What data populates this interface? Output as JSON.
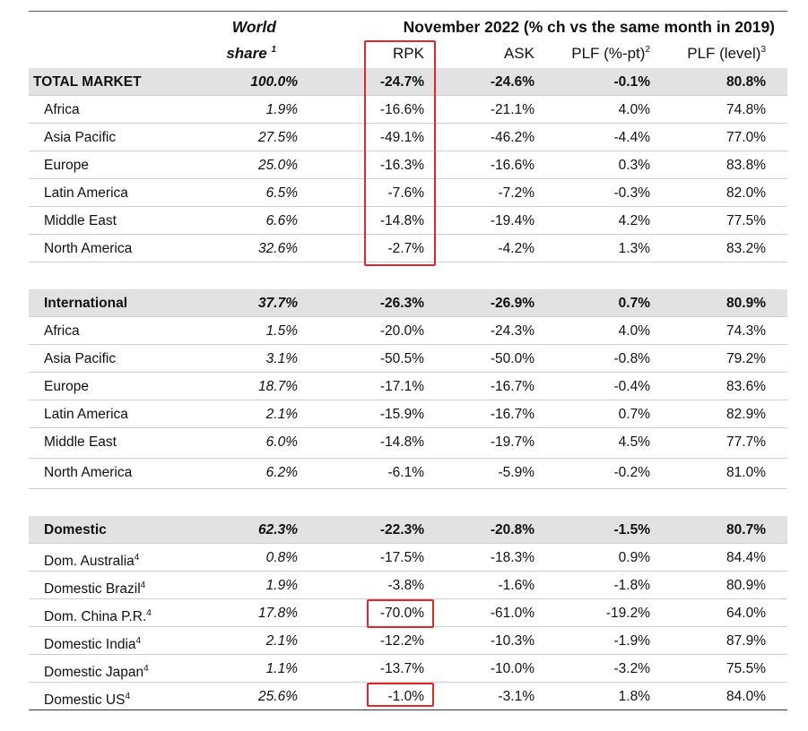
{
  "header": {
    "world_share_line1": "World",
    "world_share_line2": "share",
    "world_share_sup": "1",
    "period_title": "November 2022 (% ch vs the same month in 2019)",
    "columns": {
      "rpk": "RPK",
      "ask": "ASK",
      "plf_pt": "PLF (%-pt)",
      "plf_pt_sup": "2",
      "plf_level": "PLF (level)",
      "plf_level_sup": "3"
    }
  },
  "sections": [
    {
      "type": "total",
      "rows": [
        {
          "name": "TOTAL MARKET",
          "sup": "",
          "share": "100.0%",
          "rpk": "-24.7%",
          "ask": "-24.6%",
          "plf_pt": "-0.1%",
          "plf_level": "80.8%"
        },
        {
          "name": "Africa",
          "sup": "",
          "share": "1.9%",
          "rpk": "-16.6%",
          "ask": "-21.1%",
          "plf_pt": "4.0%",
          "plf_level": "74.8%"
        },
        {
          "name": "Asia Pacific",
          "sup": "",
          "share": "27.5%",
          "rpk": "-49.1%",
          "ask": "-46.2%",
          "plf_pt": "-4.4%",
          "plf_level": "77.0%"
        },
        {
          "name": "Europe",
          "sup": "",
          "share": "25.0%",
          "rpk": "-16.3%",
          "ask": "-16.6%",
          "plf_pt": "0.3%",
          "plf_level": "83.8%"
        },
        {
          "name": "Latin America",
          "sup": "",
          "share": "6.5%",
          "rpk": "-7.6%",
          "ask": "-7.2%",
          "plf_pt": "-0.3%",
          "plf_level": "82.0%"
        },
        {
          "name": "Middle East",
          "sup": "",
          "share": "6.6%",
          "rpk": "-14.8%",
          "ask": "-19.4%",
          "plf_pt": "4.2%",
          "plf_level": "77.5%"
        },
        {
          "name": "North America",
          "sup": "",
          "share": "32.6%",
          "rpk": "-2.7%",
          "ask": "-4.2%",
          "plf_pt": "1.3%",
          "plf_level": "83.2%"
        }
      ]
    },
    {
      "type": "international",
      "rows": [
        {
          "name": "International",
          "sup": "",
          "share": "37.7%",
          "rpk": "-26.3%",
          "ask": "-26.9%",
          "plf_pt": "0.7%",
          "plf_level": "80.9%"
        },
        {
          "name": "Africa",
          "sup": "",
          "share": "1.5%",
          "rpk": "-20.0%",
          "ask": "-24.3%",
          "plf_pt": "4.0%",
          "plf_level": "74.3%"
        },
        {
          "name": "Asia Pacific",
          "sup": "",
          "share": "3.1%",
          "rpk": "-50.5%",
          "ask": "-50.0%",
          "plf_pt": "-0.8%",
          "plf_level": "79.2%"
        },
        {
          "name": "Europe",
          "sup": "",
          "share": "18.7%",
          "rpk": "-17.1%",
          "ask": "-16.7%",
          "plf_pt": "-0.4%",
          "plf_level": "83.6%"
        },
        {
          "name": "Latin America",
          "sup": "",
          "share": "2.1%",
          "rpk": "-15.9%",
          "ask": "-16.7%",
          "plf_pt": "0.7%",
          "plf_level": "82.9%"
        },
        {
          "name": "Middle East",
          "sup": "",
          "share": "6.0%",
          "rpk": "-14.8%",
          "ask": "-19.7%",
          "plf_pt": "4.5%",
          "plf_level": "77.7%"
        },
        {
          "name": "North America",
          "sup": "",
          "share": "6.2%",
          "rpk": "-6.1%",
          "ask": "-5.9%",
          "plf_pt": "-0.2%",
          "plf_level": "81.0%"
        }
      ]
    },
    {
      "type": "domestic",
      "rows": [
        {
          "name": "Domestic",
          "sup": "",
          "share": "62.3%",
          "rpk": "-22.3%",
          "ask": "-20.8%",
          "plf_pt": "-1.5%",
          "plf_level": "80.7%"
        },
        {
          "name": "Dom. Australia",
          "sup": "4",
          "share": "0.8%",
          "rpk": "-17.5%",
          "ask": "-18.3%",
          "plf_pt": "0.9%",
          "plf_level": "84.4%"
        },
        {
          "name": "Domestic Brazil",
          "sup": "4",
          "share": "1.9%",
          "rpk": "-3.8%",
          "ask": "-1.6%",
          "plf_pt": "-1.8%",
          "plf_level": "80.9%"
        },
        {
          "name": "Dom. China P.R.",
          "sup": "4",
          "share": "17.8%",
          "rpk": "-70.0%",
          "ask": "-61.0%",
          "plf_pt": "-19.2%",
          "plf_level": "64.0%"
        },
        {
          "name": "Domestic India",
          "sup": "4",
          "share": "2.1%",
          "rpk": "-12.2%",
          "ask": "-10.3%",
          "plf_pt": "-1.9%",
          "plf_level": "87.9%"
        },
        {
          "name": "Domestic Japan",
          "sup": "4",
          "share": "1.1%",
          "rpk": "-13.7%",
          "ask": "-10.0%",
          "plf_pt": "-3.2%",
          "plf_level": "75.5%"
        },
        {
          "name": "Domestic US",
          "sup": "4",
          "share": "25.6%",
          "rpk": "-1.0%",
          "ask": "-3.1%",
          "plf_pt": "1.8%",
          "plf_level": "84.0%"
        }
      ]
    }
  ],
  "highlight_color": "#e0262b"
}
